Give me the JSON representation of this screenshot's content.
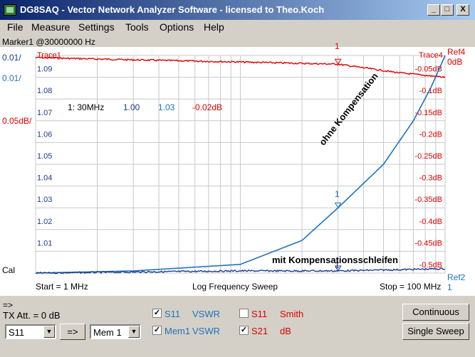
{
  "window": {
    "title": "DG8SAQ  -  Vector Network Analyzer Software  -  licensed to Theo.Koch",
    "buttons": {
      "minimize": "_",
      "maximize": "□",
      "close": "X"
    }
  },
  "menu": [
    "File",
    "Measure",
    "Settings",
    "Tools",
    "Options",
    "Help"
  ],
  "marker_header": "Marker1 @30000000 Hz",
  "plot": {
    "left_scale_1": "0.01/",
    "left_scale_2": "0.01/",
    "left_scale_3": "0.05dB/",
    "trace_left": "Trace1",
    "trace_right": "Trace4",
    "ref_right_top": "Ref4",
    "ref_right_top_value": "0dB",
    "ref_right_bottom": "Ref2",
    "ref_right_bottom_value": "1",
    "cal_label": "Cal",
    "start_label": "Start = 1 MHz",
    "sweep_label": "Log Frequency Sweep",
    "stop_label": "Stop = 100 MHz",
    "marker_top": "1",
    "marker_mid": "1",
    "marker_bottom": "1",
    "marker_readout": {
      "freq": "1: 30MHz",
      "v1": "1.00",
      "v2": "1.03",
      "v3": "-0.02dB"
    },
    "annotation_upper": "ohne Kompensation",
    "annotation_lower": "mit Kompensationsschleifen"
  },
  "chart_data": {
    "type": "line",
    "x_scale": "log",
    "xlim": [
      1,
      100
    ],
    "x_unit": "MHz",
    "grid": true,
    "left_ticks": [
      "1.09",
      "1.08",
      "1.07",
      "1.06",
      "1.05",
      "1.04",
      "1.03",
      "1.02",
      "1.01"
    ],
    "right_ticks": [
      "-0.05dB",
      "-0.1dB",
      "-0.15dB",
      "-0.2dB",
      "-0.25dB",
      "-0.3dB",
      "-0.35dB",
      "-0.4dB",
      "-0.45dB",
      "-0.5dB"
    ],
    "series": [
      {
        "color": "#e00000",
        "axis": "dB",
        "ylim": [
          -0.5,
          0
        ],
        "x": [
          1,
          3,
          10,
          30,
          60,
          100
        ],
        "y": [
          -0.005,
          -0.01,
          -0.015,
          -0.02,
          -0.04,
          -0.05
        ]
      },
      {
        "color": "#1e73be",
        "axis": "VSWR",
        "ylim": [
          1.0,
          1.1
        ],
        "x": [
          1,
          3,
          10,
          20,
          30,
          50,
          70,
          85,
          100
        ],
        "y": [
          1.0,
          1.001,
          1.004,
          1.015,
          1.03,
          1.05,
          1.07,
          1.085,
          1.1
        ]
      },
      {
        "color": "#1c3d8c",
        "axis": "VSWR",
        "ylim": [
          1.0,
          1.1
        ],
        "x": [
          1,
          3,
          10,
          30,
          100
        ],
        "y": [
          1.0,
          1.0005,
          1.001,
          1.001,
          1.002
        ]
      }
    ]
  },
  "panel": {
    "arrow_label": "=>",
    "tx_att": "TX Att. = 0 dB",
    "param_select": "S11",
    "transfer_button": "=>",
    "mem_select": "Mem 1",
    "rows": [
      {
        "checked": true,
        "name": "S11",
        "type": "VSWR",
        "color": "#1e73be"
      },
      {
        "checked": true,
        "name": "Mem1",
        "type": "VSWR",
        "color": "#1e73be"
      },
      {
        "checked": false,
        "name": "S11",
        "type": "Smith",
        "color": "#e00000"
      },
      {
        "checked": true,
        "name": "S21",
        "type": "dB",
        "color": "#e00000"
      }
    ],
    "check_mark": "✓",
    "continuous_button": "Continuous",
    "single_sweep_button": "Single Sweep"
  }
}
